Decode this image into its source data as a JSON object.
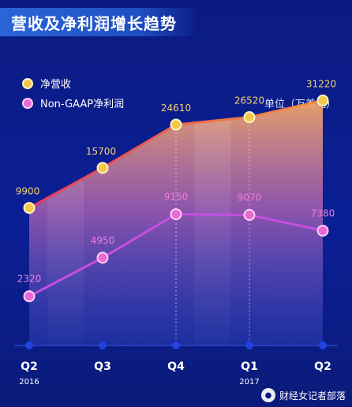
{
  "title": "营收及净利润增长趋势",
  "unit_label": "单位（万美元）",
  "watermark": "财经女记者部落",
  "colors": {
    "revenue": "#f3c84b",
    "profit": "#e86ad8",
    "background": "#0b1a7a"
  },
  "chart_data": {
    "type": "line",
    "categories": [
      "Q2",
      "Q3",
      "Q4",
      "Q1",
      "Q2"
    ],
    "year_labels": [
      "2016",
      "",
      "",
      "2017",
      ""
    ],
    "series": [
      {
        "name": "净营收",
        "values": [
          9900,
          15700,
          24610,
          26520,
          31220
        ]
      },
      {
        "name": "Non-GAAP净利润",
        "values": [
          2320,
          4950,
          9150,
          9070,
          7380
        ]
      }
    ],
    "xlabel": "",
    "ylabel": "",
    "legend_position": "top-left",
    "grid": false
  }
}
